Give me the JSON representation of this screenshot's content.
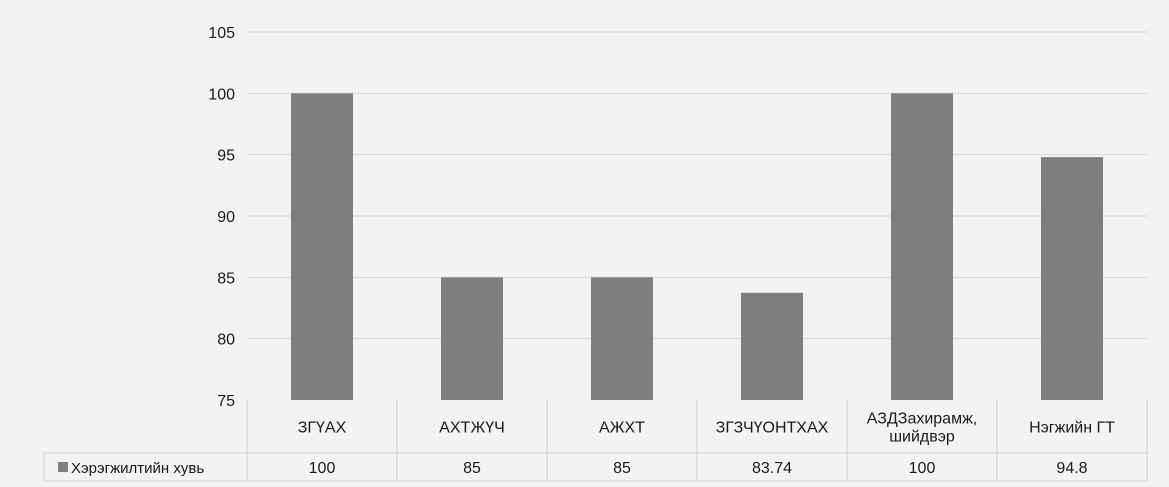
{
  "chart_data": {
    "type": "bar",
    "title": "",
    "xlabel": "",
    "ylabel": "",
    "categories": [
      [
        "ЗГҮАХ"
      ],
      [
        "АХТЖҮЧ"
      ],
      [
        "АЖХТ"
      ],
      [
        "ЗГЗЧҮОНТХАХ"
      ],
      [
        "АЗДЗахирамж,",
        "шийдвэр"
      ],
      [
        "Нэгжийн ГТ"
      ]
    ],
    "series": [
      {
        "name": "Хэрэгжилтийн хувь",
        "values": [
          100,
          85,
          85,
          83.74,
          100,
          94.8
        ],
        "value_labels": [
          "100",
          "85",
          "85",
          "83.74",
          "100",
          "94.8"
        ],
        "color": "#7e7e7e"
      }
    ],
    "ylim": [
      75,
      105
    ],
    "yticks": [
      75,
      80,
      85,
      90,
      95,
      100,
      105
    ],
    "grid": true,
    "legend": "data-table-left",
    "data_table": true
  },
  "colors": {
    "background": "#f3f3f1",
    "gridline": "#d6d6d6",
    "table_border": "#cfcfcf",
    "bar": "#7e7e7e",
    "text": "#1a1a1a"
  }
}
